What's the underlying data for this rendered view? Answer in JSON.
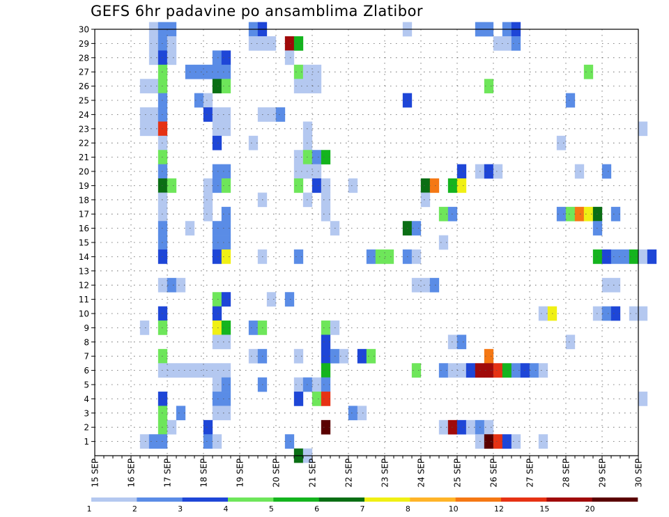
{
  "chart_data": {
    "type": "heatmap",
    "title": "GEFS 6hr padavine po ansamblima Zlatibor",
    "xlabel": "",
    "ylabel": "",
    "x_ticks": [
      "15 SEP",
      "16 SEP",
      "17 SEP",
      "18 SEP",
      "19 SEP",
      "20 SEP",
      "21 SEP",
      "22 SEP",
      "23 SEP",
      "24 SEP",
      "25 SEP",
      "26 SEP",
      "27 SEP",
      "28 SEP",
      "29 SEP",
      "30 SEP"
    ],
    "y_ticks": [
      1,
      2,
      3,
      4,
      5,
      6,
      7,
      8,
      9,
      10,
      11,
      12,
      13,
      14,
      15,
      16,
      17,
      18,
      19,
      20,
      21,
      22,
      23,
      24,
      25,
      26,
      27,
      28,
      29,
      30
    ],
    "x_range": [
      "15 SEP 00Z",
      "30 SEP 00Z"
    ],
    "time_step_hours": 6,
    "y_range": [
      0,
      30
    ],
    "grid": true,
    "colorbar": {
      "levels": [
        1,
        2,
        3,
        4,
        5,
        6,
        7,
        8,
        10,
        12,
        15,
        20
      ],
      "colors": [
        "#b4c8f0",
        "#5a8ce6",
        "#1e46d7",
        "#6ee65a",
        "#14b41e",
        "#0a6e14",
        "#f0f014",
        "#ffb428",
        "#f57814",
        "#e63214",
        "#a00a0a",
        "#5a0000"
      ]
    },
    "cells_description": "each cell = [time step index from 15 SEP 00Z, ensemble member, color class index into colorbar.colors]",
    "cells": [
      [
        6,
        30,
        0
      ],
      [
        7,
        30,
        1
      ],
      [
        8,
        30,
        1
      ],
      [
        17,
        30,
        1
      ],
      [
        18,
        30,
        2
      ],
      [
        34,
        30,
        0
      ],
      [
        42,
        30,
        1
      ],
      [
        43,
        30,
        1
      ],
      [
        45,
        30,
        1
      ],
      [
        46,
        30,
        2
      ],
      [
        6,
        29,
        0
      ],
      [
        7,
        29,
        1
      ],
      [
        8,
        29,
        0
      ],
      [
        17,
        29,
        0
      ],
      [
        18,
        29,
        0
      ],
      [
        19,
        29,
        0
      ],
      [
        21,
        29,
        10
      ],
      [
        22,
        29,
        4
      ],
      [
        44,
        29,
        0
      ],
      [
        45,
        29,
        0
      ],
      [
        46,
        29,
        1
      ],
      [
        6,
        28,
        0
      ],
      [
        7,
        28,
        2
      ],
      [
        8,
        28,
        0
      ],
      [
        13,
        28,
        1
      ],
      [
        14,
        28,
        2
      ],
      [
        21,
        28,
        0
      ],
      [
        7,
        27,
        3
      ],
      [
        10,
        27,
        1
      ],
      [
        11,
        27,
        1
      ],
      [
        12,
        27,
        1
      ],
      [
        13,
        27,
        1
      ],
      [
        14,
        27,
        1
      ],
      [
        22,
        27,
        3
      ],
      [
        23,
        27,
        0
      ],
      [
        24,
        27,
        0
      ],
      [
        54,
        27,
        3
      ],
      [
        5,
        26,
        0
      ],
      [
        6,
        26,
        0
      ],
      [
        7,
        26,
        3
      ],
      [
        13,
        26,
        5
      ],
      [
        14,
        26,
        3
      ],
      [
        22,
        26,
        0
      ],
      [
        23,
        26,
        0
      ],
      [
        24,
        26,
        0
      ],
      [
        43,
        26,
        3
      ],
      [
        7,
        25,
        1
      ],
      [
        11,
        25,
        1
      ],
      [
        12,
        25,
        0
      ],
      [
        34,
        25,
        2
      ],
      [
        52,
        25,
        1
      ],
      [
        5,
        24,
        0
      ],
      [
        6,
        24,
        0
      ],
      [
        7,
        24,
        1
      ],
      [
        12,
        24,
        2
      ],
      [
        13,
        24,
        0
      ],
      [
        14,
        24,
        0
      ],
      [
        18,
        24,
        0
      ],
      [
        19,
        24,
        0
      ],
      [
        20,
        24,
        1
      ],
      [
        5,
        23,
        0
      ],
      [
        6,
        23,
        0
      ],
      [
        7,
        23,
        9
      ],
      [
        13,
        23,
        0
      ],
      [
        14,
        23,
        0
      ],
      [
        23,
        23,
        0
      ],
      [
        60,
        23,
        0
      ],
      [
        7,
        22,
        0
      ],
      [
        13,
        22,
        2
      ],
      [
        17,
        22,
        0
      ],
      [
        23,
        22,
        0
      ],
      [
        51,
        22,
        0
      ],
      [
        7,
        21,
        3
      ],
      [
        22,
        21,
        0
      ],
      [
        23,
        21,
        3
      ],
      [
        24,
        21,
        1
      ],
      [
        25,
        21,
        4
      ],
      [
        7,
        20,
        1
      ],
      [
        13,
        20,
        1
      ],
      [
        14,
        20,
        1
      ],
      [
        22,
        20,
        0
      ],
      [
        23,
        20,
        0
      ],
      [
        24,
        20,
        0
      ],
      [
        40,
        20,
        2
      ],
      [
        42,
        20,
        0
      ],
      [
        43,
        20,
        2
      ],
      [
        44,
        20,
        0
      ],
      [
        53,
        20,
        0
      ],
      [
        56,
        20,
        1
      ],
      [
        7,
        19,
        5
      ],
      [
        8,
        19,
        3
      ],
      [
        12,
        19,
        0
      ],
      [
        13,
        19,
        1
      ],
      [
        14,
        19,
        3
      ],
      [
        22,
        19,
        3
      ],
      [
        24,
        19,
        2
      ],
      [
        25,
        19,
        0
      ],
      [
        28,
        19,
        0
      ],
      [
        36,
        19,
        5
      ],
      [
        37,
        19,
        8
      ],
      [
        39,
        19,
        4
      ],
      [
        40,
        19,
        6
      ],
      [
        7,
        18,
        0
      ],
      [
        12,
        18,
        0
      ],
      [
        18,
        18,
        0
      ],
      [
        23,
        18,
        0
      ],
      [
        25,
        18,
        0
      ],
      [
        36,
        18,
        0
      ],
      [
        7,
        17,
        0
      ],
      [
        12,
        17,
        0
      ],
      [
        14,
        17,
        1
      ],
      [
        25,
        17,
        0
      ],
      [
        38,
        17,
        3
      ],
      [
        39,
        17,
        1
      ],
      [
        51,
        17,
        1
      ],
      [
        52,
        17,
        3
      ],
      [
        53,
        17,
        8
      ],
      [
        54,
        17,
        6
      ],
      [
        55,
        17,
        5
      ],
      [
        57,
        17,
        1
      ],
      [
        7,
        16,
        1
      ],
      [
        10,
        16,
        0
      ],
      [
        13,
        16,
        1
      ],
      [
        14,
        16,
        1
      ],
      [
        26,
        16,
        0
      ],
      [
        34,
        16,
        5
      ],
      [
        35,
        16,
        1
      ],
      [
        55,
        16,
        1
      ],
      [
        7,
        15,
        1
      ],
      [
        13,
        15,
        1
      ],
      [
        14,
        15,
        1
      ],
      [
        38,
        15,
        0
      ],
      [
        7,
        14,
        2
      ],
      [
        13,
        14,
        2
      ],
      [
        14,
        14,
        6
      ],
      [
        18,
        14,
        0
      ],
      [
        22,
        14,
        1
      ],
      [
        30,
        14,
        1
      ],
      [
        31,
        14,
        3
      ],
      [
        32,
        14,
        3
      ],
      [
        34,
        14,
        1
      ],
      [
        35,
        14,
        0
      ],
      [
        55,
        14,
        4
      ],
      [
        56,
        14,
        2
      ],
      [
        57,
        14,
        1
      ],
      [
        58,
        14,
        1
      ],
      [
        59,
        14,
        4
      ],
      [
        60,
        14,
        0
      ],
      [
        61,
        14,
        2
      ],
      [
        7,
        12,
        0
      ],
      [
        8,
        12,
        1
      ],
      [
        9,
        12,
        0
      ],
      [
        35,
        12,
        0
      ],
      [
        36,
        12,
        0
      ],
      [
        37,
        12,
        1
      ],
      [
        56,
        12,
        0
      ],
      [
        57,
        12,
        0
      ],
      [
        13,
        11,
        3
      ],
      [
        14,
        11,
        2
      ],
      [
        19,
        11,
        0
      ],
      [
        21,
        11,
        1
      ],
      [
        7,
        10,
        2
      ],
      [
        13,
        10,
        2
      ],
      [
        49,
        10,
        0
      ],
      [
        50,
        10,
        6
      ],
      [
        55,
        10,
        0
      ],
      [
        56,
        10,
        1
      ],
      [
        57,
        10,
        2
      ],
      [
        59,
        10,
        0
      ],
      [
        60,
        10,
        0
      ],
      [
        5,
        9,
        0
      ],
      [
        7,
        9,
        3
      ],
      [
        13,
        9,
        6
      ],
      [
        14,
        9,
        4
      ],
      [
        17,
        9,
        1
      ],
      [
        18,
        9,
        3
      ],
      [
        25,
        9,
        3
      ],
      [
        26,
        9,
        0
      ],
      [
        13,
        8,
        0
      ],
      [
        14,
        8,
        0
      ],
      [
        25,
        8,
        2
      ],
      [
        39,
        8,
        0
      ],
      [
        40,
        8,
        1
      ],
      [
        52,
        8,
        0
      ],
      [
        7,
        7,
        3
      ],
      [
        17,
        7,
        0
      ],
      [
        18,
        7,
        1
      ],
      [
        22,
        7,
        0
      ],
      [
        25,
        7,
        2
      ],
      [
        26,
        7,
        1
      ],
      [
        27,
        7,
        0
      ],
      [
        29,
        7,
        2
      ],
      [
        30,
        7,
        3
      ],
      [
        43,
        7,
        8
      ],
      [
        7,
        6,
        0
      ],
      [
        8,
        6,
        0
      ],
      [
        9,
        6,
        0
      ],
      [
        10,
        6,
        0
      ],
      [
        11,
        6,
        0
      ],
      [
        12,
        6,
        0
      ],
      [
        13,
        6,
        0
      ],
      [
        14,
        6,
        0
      ],
      [
        25,
        6,
        4
      ],
      [
        35,
        6,
        3
      ],
      [
        38,
        6,
        1
      ],
      [
        39,
        6,
        0
      ],
      [
        40,
        6,
        0
      ],
      [
        41,
        6,
        2
      ],
      [
        42,
        6,
        10
      ],
      [
        43,
        6,
        10
      ],
      [
        44,
        6,
        9
      ],
      [
        45,
        6,
        4
      ],
      [
        46,
        6,
        1
      ],
      [
        47,
        6,
        2
      ],
      [
        48,
        6,
        1
      ],
      [
        49,
        6,
        0
      ],
      [
        13,
        5,
        0
      ],
      [
        14,
        5,
        1
      ],
      [
        18,
        5,
        1
      ],
      [
        22,
        5,
        0
      ],
      [
        23,
        5,
        1
      ],
      [
        24,
        5,
        0
      ],
      [
        25,
        5,
        1
      ],
      [
        7,
        4,
        2
      ],
      [
        13,
        4,
        1
      ],
      [
        14,
        4,
        1
      ],
      [
        22,
        4,
        2
      ],
      [
        24,
        4,
        3
      ],
      [
        25,
        4,
        9
      ],
      [
        60,
        4,
        0
      ],
      [
        7,
        3,
        3
      ],
      [
        9,
        3,
        1
      ],
      [
        13,
        3,
        0
      ],
      [
        14,
        3,
        0
      ],
      [
        28,
        3,
        1
      ],
      [
        29,
        3,
        0
      ],
      [
        7,
        2,
        3
      ],
      [
        8,
        2,
        0
      ],
      [
        12,
        2,
        2
      ],
      [
        25,
        2,
        11
      ],
      [
        38,
        2,
        0
      ],
      [
        39,
        2,
        10
      ],
      [
        40,
        2,
        2
      ],
      [
        41,
        2,
        0
      ],
      [
        42,
        2,
        1
      ],
      [
        43,
        2,
        0
      ],
      [
        5,
        1,
        0
      ],
      [
        6,
        1,
        1
      ],
      [
        7,
        1,
        1
      ],
      [
        12,
        1,
        1
      ],
      [
        13,
        1,
        0
      ],
      [
        21,
        1,
        1
      ],
      [
        42,
        1,
        0
      ],
      [
        43,
        1,
        11
      ],
      [
        44,
        1,
        9
      ],
      [
        45,
        1,
        2
      ],
      [
        46,
        1,
        0
      ],
      [
        49,
        1,
        0
      ],
      [
        22,
        0,
        5
      ],
      [
        23,
        0,
        0
      ]
    ]
  }
}
